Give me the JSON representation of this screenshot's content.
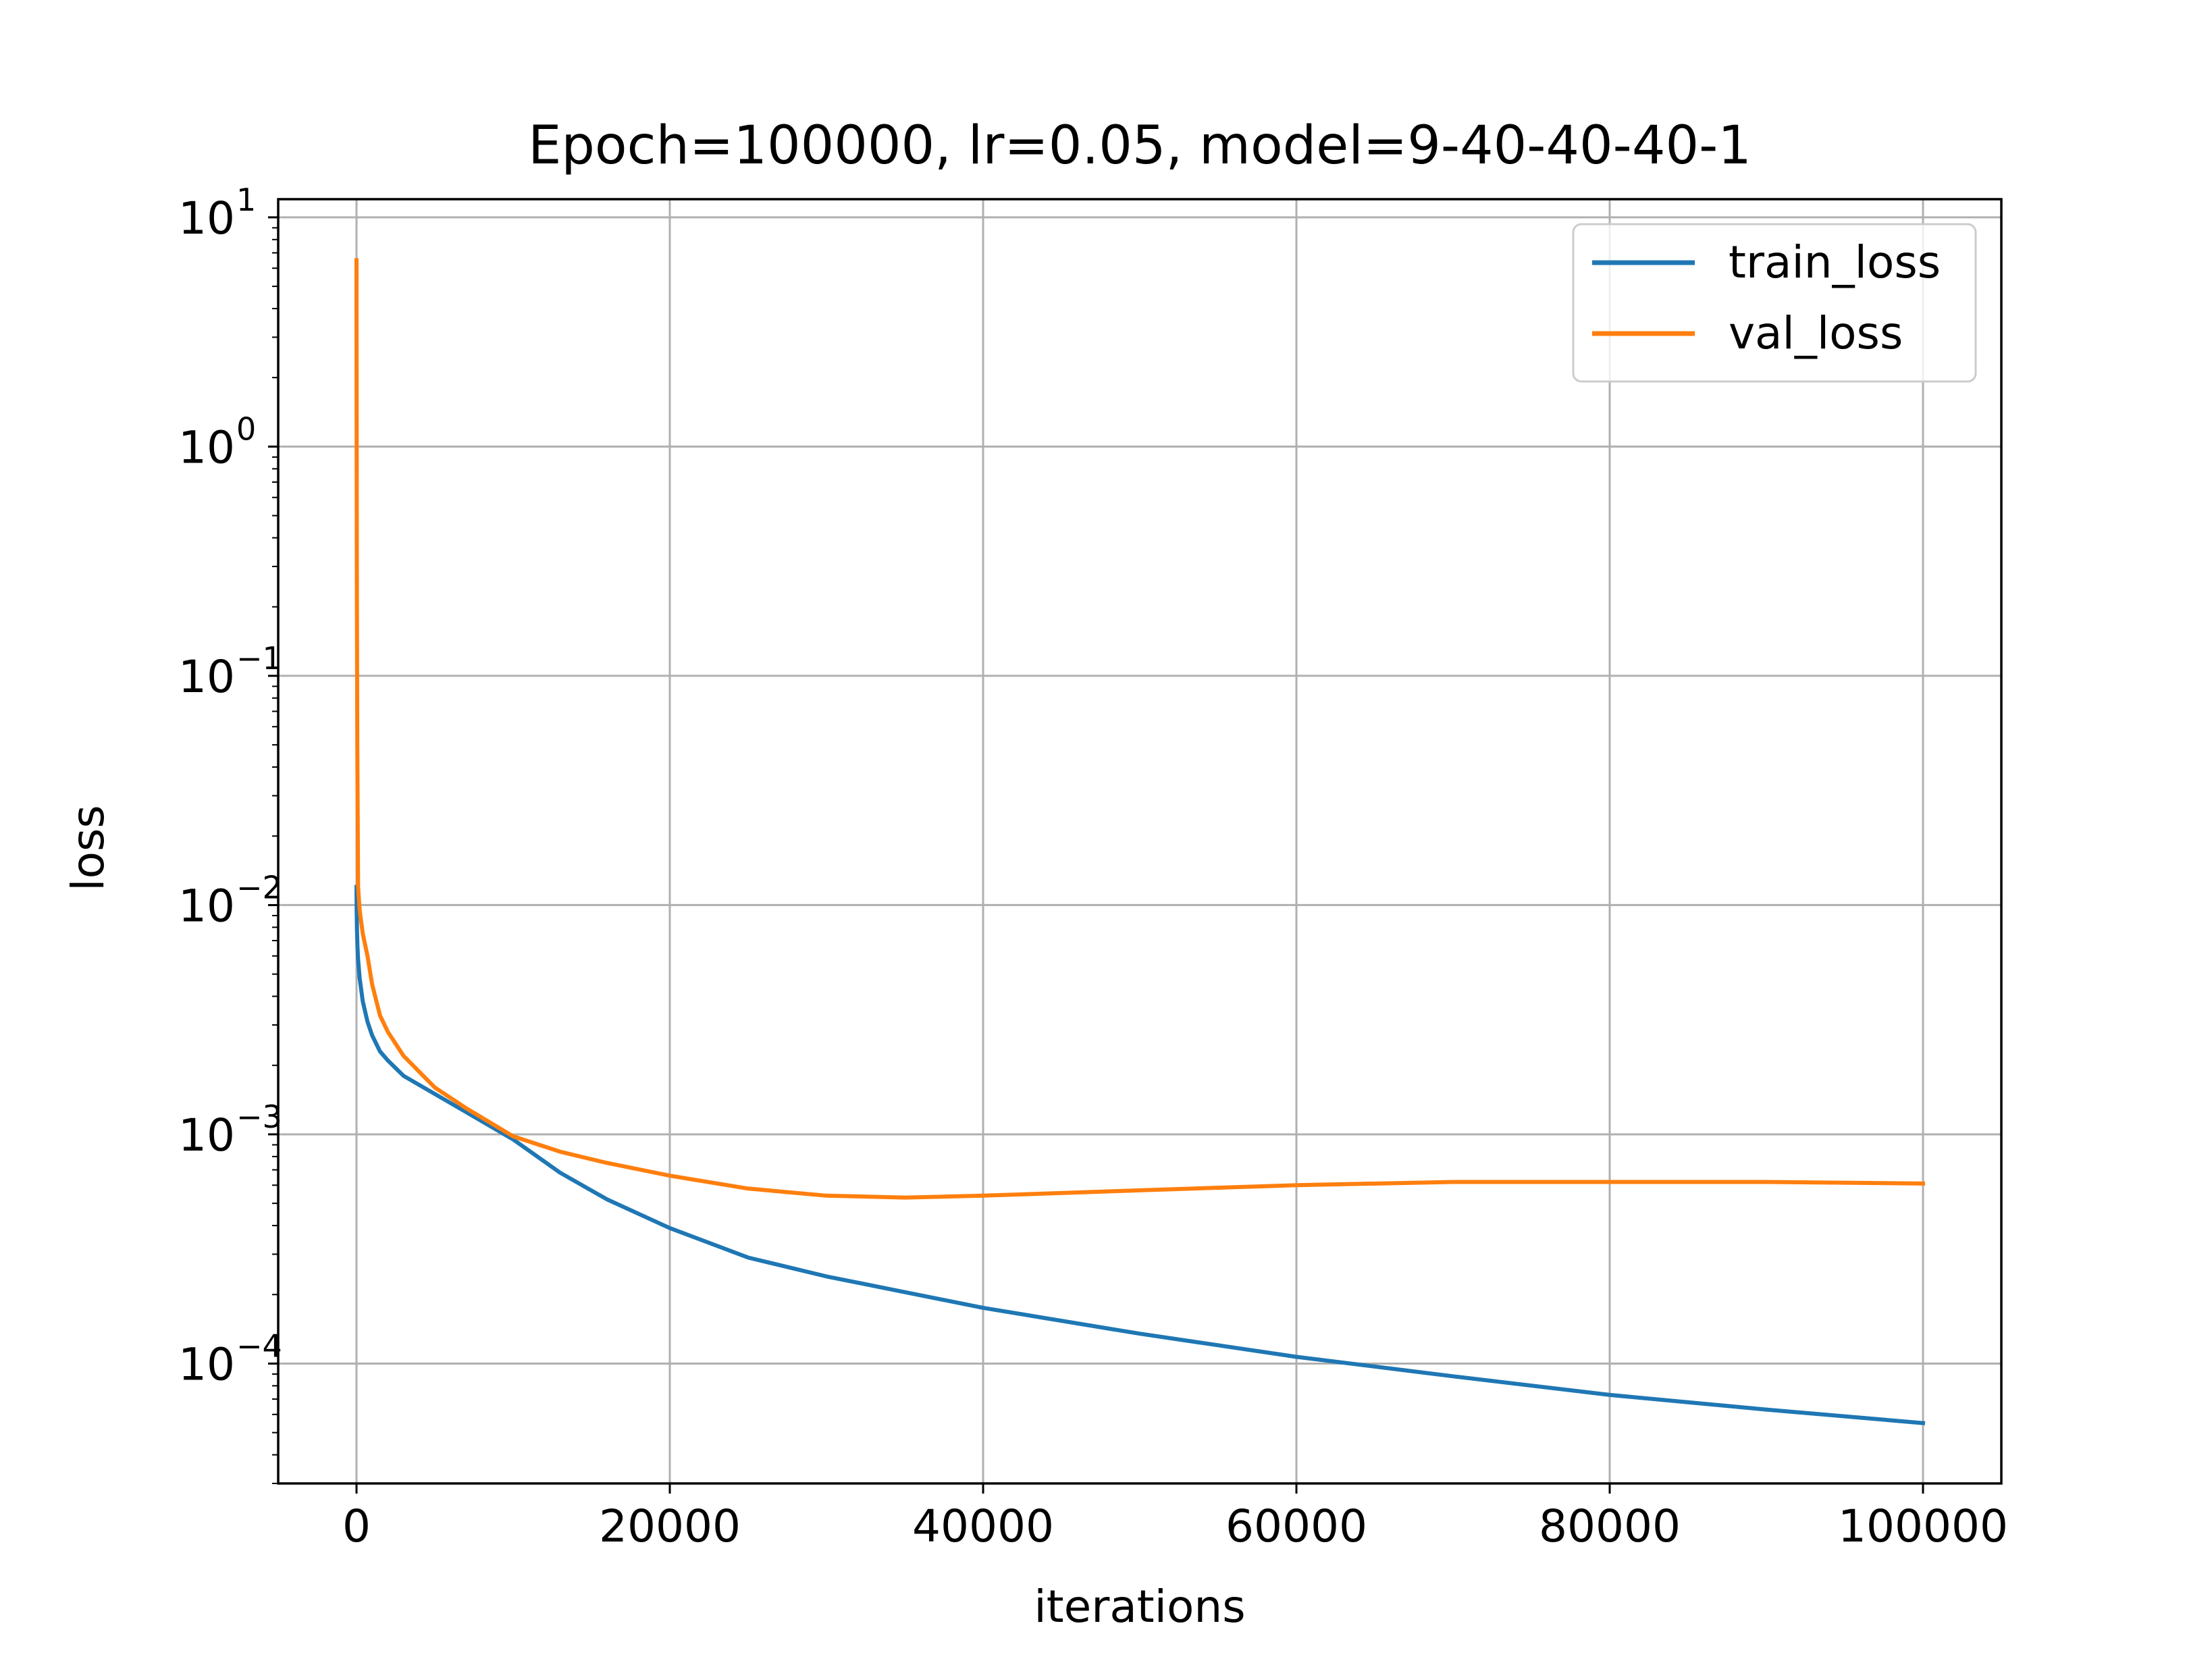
{
  "chart_data": {
    "type": "line",
    "title": "Epoch=100000, lr=0.05, model=9-40-40-40-1",
    "xlabel": "iterations",
    "ylabel": "loss",
    "xlim": [
      -5000,
      105000
    ],
    "ylim": [
      3e-05,
      12
    ],
    "yscale": "log",
    "grid": true,
    "legend_position": "top-right",
    "x_ticks": [
      {
        "value": 0,
        "label": "0"
      },
      {
        "value": 20000,
        "label": "20000"
      },
      {
        "value": 40000,
        "label": "40000"
      },
      {
        "value": 60000,
        "label": "60000"
      },
      {
        "value": 80000,
        "label": "80000"
      },
      {
        "value": 100000,
        "label": "100000"
      }
    ],
    "y_ticks": [
      {
        "value": 10,
        "base": "10",
        "exp": "1"
      },
      {
        "value": 1,
        "base": "10",
        "exp": "0"
      },
      {
        "value": 0.1,
        "base": "10",
        "exp": "−1"
      },
      {
        "value": 0.01,
        "base": "10",
        "exp": "−2"
      },
      {
        "value": 0.001,
        "base": "10",
        "exp": "−3"
      },
      {
        "value": 0.0001,
        "base": "10",
        "exp": "−4"
      }
    ],
    "series": [
      {
        "name": "train_loss",
        "color": "#1f77b4",
        "x": [
          0,
          10,
          30,
          60,
          100,
          200,
          400,
          700,
          1000,
          1500,
          2000,
          3000,
          5000,
          7000,
          10000,
          13000,
          16000,
          20000,
          25000,
          30000,
          40000,
          50000,
          60000,
          70000,
          80000,
          90000,
          100000
        ],
        "y": [
          0.012,
          0.0095,
          0.0078,
          0.0066,
          0.0058,
          0.0048,
          0.0038,
          0.0031,
          0.0027,
          0.0023,
          0.0021,
          0.0018,
          0.0015,
          0.00125,
          0.00095,
          0.00068,
          0.00052,
          0.00039,
          0.00029,
          0.00024,
          0.000175,
          0.000135,
          0.000107,
          8.8e-05,
          7.3e-05,
          6.3e-05,
          5.5e-05
        ]
      },
      {
        "name": "val_loss",
        "color": "#ff7f0e",
        "x": [
          0,
          5,
          20,
          50,
          100,
          200,
          400,
          700,
          1000,
          1500,
          2000,
          3000,
          5000,
          7000,
          10000,
          13000,
          16000,
          20000,
          25000,
          30000,
          35000,
          40000,
          50000,
          60000,
          70000,
          80000,
          90000,
          100000
        ],
        "y": [
          6.5,
          2.0,
          0.3,
          0.05,
          0.012,
          0.0095,
          0.0075,
          0.006,
          0.0045,
          0.0033,
          0.0028,
          0.0022,
          0.0016,
          0.0013,
          0.00098,
          0.00084,
          0.00075,
          0.00066,
          0.00058,
          0.00054,
          0.00053,
          0.00054,
          0.00057,
          0.0006,
          0.00062,
          0.00062,
          0.00062,
          0.00061
        ]
      }
    ]
  }
}
